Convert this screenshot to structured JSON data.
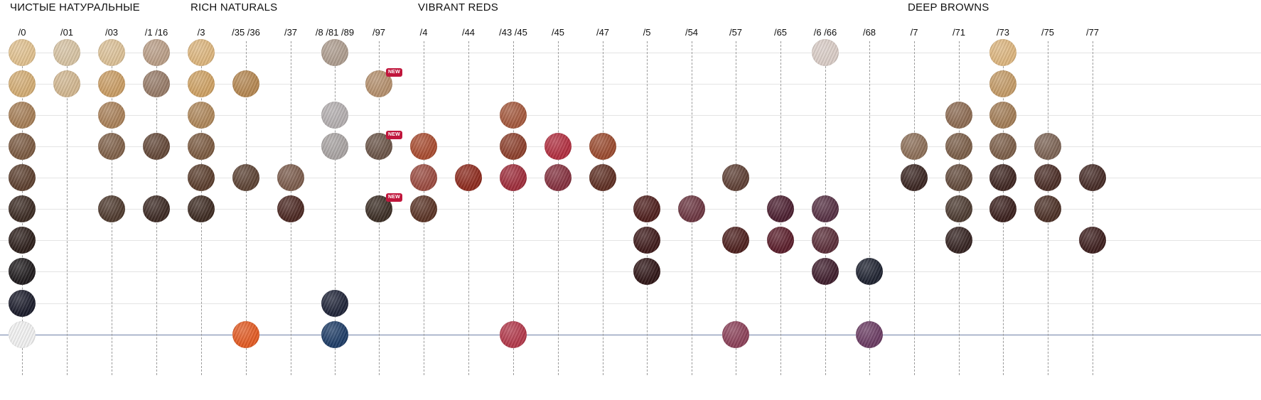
{
  "groups": [
    {
      "title": "ЧИСТЫЕ НАТУРАЛЬНЫЕ",
      "col": 0
    },
    {
      "title": "RICH NATURALS",
      "col": 4
    },
    {
      "title": "VIBRANT REDS",
      "col": 9
    },
    {
      "title": "DEEP BROWNS",
      "col": 20
    }
  ],
  "columns": [
    "/0",
    "/01",
    "/03",
    "/1 /16",
    "/3",
    "/35 /36",
    "/37",
    "/8 /81 /89",
    "/97",
    "/4",
    "/44",
    "/43 /45",
    "/45",
    "/47",
    "/5",
    "/54",
    "/57",
    "/65",
    "/6 /66",
    "/68",
    "/7",
    "/71",
    "/73",
    "/75",
    "/77"
  ],
  "new_badge": "NEW",
  "swatches": [
    {
      "col": 0,
      "row": 0,
      "color": "#e0c08e"
    },
    {
      "col": 0,
      "row": 1,
      "color": "#d3ac73"
    },
    {
      "col": 0,
      "row": 2,
      "color": "#a57d55"
    },
    {
      "col": 0,
      "row": 3,
      "color": "#7a5940"
    },
    {
      "col": 0,
      "row": 4,
      "color": "#5c3f2e"
    },
    {
      "col": 0,
      "row": 5,
      "color": "#3b2a22"
    },
    {
      "col": 0,
      "row": 6,
      "color": "#2c1e1a"
    },
    {
      "col": 0,
      "row": 7,
      "color": "#1e1a1c"
    },
    {
      "col": 0,
      "row": 8,
      "color": "#1a1b2a"
    },
    {
      "col": 0,
      "row": 9,
      "color": "#f1f1f1"
    },
    {
      "col": 1,
      "row": 0,
      "color": "#d6c2a2"
    },
    {
      "col": 1,
      "row": 1,
      "color": "#d1b68f"
    },
    {
      "col": 2,
      "row": 0,
      "color": "#dbc096"
    },
    {
      "col": 2,
      "row": 1,
      "color": "#c99c63"
    },
    {
      "col": 2,
      "row": 2,
      "color": "#a98058"
    },
    {
      "col": 2,
      "row": 3,
      "color": "#7f6048"
    },
    {
      "col": 2,
      "row": 5,
      "color": "#4e392d"
    },
    {
      "col": 3,
      "row": 0,
      "color": "#b99d86"
    },
    {
      "col": 3,
      "row": 1,
      "color": "#967a67"
    },
    {
      "col": 3,
      "row": 3,
      "color": "#634737"
    },
    {
      "col": 3,
      "row": 5,
      "color": "#3c2923"
    },
    {
      "col": 4,
      "row": 0,
      "color": "#dcb57d"
    },
    {
      "col": 4,
      "row": 1,
      "color": "#cea163"
    },
    {
      "col": 4,
      "row": 2,
      "color": "#ae8659"
    },
    {
      "col": 4,
      "row": 3,
      "color": "#7b5a40"
    },
    {
      "col": 4,
      "row": 4,
      "color": "#5a3d2c"
    },
    {
      "col": 4,
      "row": 5,
      "color": "#3d2a21"
    },
    {
      "col": 5,
      "row": 1,
      "color": "#b48650"
    },
    {
      "col": 5,
      "row": 4,
      "color": "#5c4233"
    },
    {
      "col": 5,
      "row": 9,
      "color": "#e25a22"
    },
    {
      "col": 6,
      "row": 4,
      "color": "#7b5b4b"
    },
    {
      "col": 6,
      "row": 5,
      "color": "#4b2721"
    },
    {
      "col": 7,
      "row": 0,
      "color": "#ad9c8e"
    },
    {
      "col": 7,
      "row": 2,
      "color": "#b3aeaf"
    },
    {
      "col": 7,
      "row": 3,
      "color": "#a8a3a2"
    },
    {
      "col": 7,
      "row": 8,
      "color": "#1f2438"
    },
    {
      "col": 7,
      "row": 9,
      "color": "#1d3c66"
    },
    {
      "col": 8,
      "row": 1,
      "color": "#b48f6c",
      "new": true
    },
    {
      "col": 8,
      "row": 3,
      "color": "#6a5447",
      "new": true
    },
    {
      "col": 8,
      "row": 5,
      "color": "#3b2d24",
      "new": true
    },
    {
      "col": 9,
      "row": 3,
      "color": "#a84b2f"
    },
    {
      "col": 9,
      "row": 4,
      "color": "#9a4a3f"
    },
    {
      "col": 9,
      "row": 5,
      "color": "#5a3325"
    },
    {
      "col": 10,
      "row": 4,
      "color": "#8d2a1d"
    },
    {
      "col": 11,
      "row": 2,
      "color": "#a4583c"
    },
    {
      "col": 11,
      "row": 3,
      "color": "#8c3f2b"
    },
    {
      "col": 11,
      "row": 4,
      "color": "#9e2c3a"
    },
    {
      "col": 11,
      "row": 9,
      "color": "#b2384a"
    },
    {
      "col": 12,
      "row": 3,
      "color": "#b12e3f"
    },
    {
      "col": 12,
      "row": 4,
      "color": "#84303e"
    },
    {
      "col": 13,
      "row": 3,
      "color": "#9a4a2e"
    },
    {
      "col": 13,
      "row": 4,
      "color": "#5e2e22"
    },
    {
      "col": 14,
      "row": 5,
      "color": "#4e1e1c"
    },
    {
      "col": 14,
      "row": 6,
      "color": "#3e1a1a"
    },
    {
      "col": 14,
      "row": 7,
      "color": "#2f1516"
    },
    {
      "col": 15,
      "row": 5,
      "color": "#6b3540"
    },
    {
      "col": 16,
      "row": 4,
      "color": "#5e3f34"
    },
    {
      "col": 16,
      "row": 6,
      "color": "#4d1f1d"
    },
    {
      "col": 16,
      "row": 9,
      "color": "#8b4058"
    },
    {
      "col": 17,
      "row": 5,
      "color": "#4b1e2f"
    },
    {
      "col": 17,
      "row": 6,
      "color": "#5a1d2a"
    },
    {
      "col": 18,
      "row": 0,
      "color": "#d9ccc6"
    },
    {
      "col": 18,
      "row": 5,
      "color": "#563043"
    },
    {
      "col": 18,
      "row": 6,
      "color": "#5a2d38"
    },
    {
      "col": 18,
      "row": 7,
      "color": "#3f1d2c"
    },
    {
      "col": 19,
      "row": 7,
      "color": "#1e2230"
    },
    {
      "col": 19,
      "row": 9,
      "color": "#6a3b62"
    },
    {
      "col": 20,
      "row": 3,
      "color": "#8c6e57"
    },
    {
      "col": 20,
      "row": 4,
      "color": "#3a2521"
    },
    {
      "col": 21,
      "row": 2,
      "color": "#8c6a51"
    },
    {
      "col": 21,
      "row": 3,
      "color": "#7a5d47"
    },
    {
      "col": 21,
      "row": 4,
      "color": "#62493a"
    },
    {
      "col": 21,
      "row": 5,
      "color": "#4c3a30"
    },
    {
      "col": 21,
      "row": 6,
      "color": "#342220"
    },
    {
      "col": 22,
      "row": 0,
      "color": "#dcb57e"
    },
    {
      "col": 22,
      "row": 1,
      "color": "#c39a66"
    },
    {
      "col": 22,
      "row": 2,
      "color": "#a27c55"
    },
    {
      "col": 22,
      "row": 3,
      "color": "#7b5d47"
    },
    {
      "col": 22,
      "row": 4,
      "color": "#3e2520"
    },
    {
      "col": 22,
      "row": 5,
      "color": "#3a1f1c"
    },
    {
      "col": 23,
      "row": 3,
      "color": "#7c6354"
    },
    {
      "col": 23,
      "row": 4,
      "color": "#4a2c25"
    },
    {
      "col": 23,
      "row": 5,
      "color": "#4b2f25"
    },
    {
      "col": 24,
      "row": 4,
      "color": "#452a25"
    },
    {
      "col": 24,
      "row": 6,
      "color": "#3d1e1d"
    }
  ]
}
